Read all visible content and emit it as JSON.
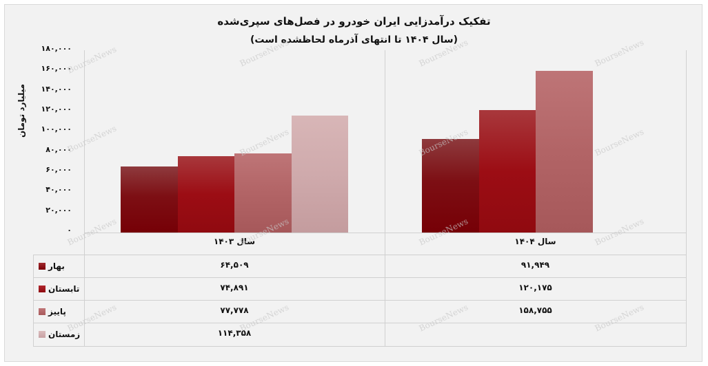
{
  "title": {
    "line1": "تفکیک درآمدزایی ایران خودرو در فصل‌های سپری‌شده",
    "line2": "(سال ۱۴۰۴ تا انتهای آذرماه لحاظشده است)"
  },
  "y_axis": {
    "label": "میلیارد تومان",
    "ticks": [
      "۱۸۰,۰۰۰",
      "۱۶۰,۰۰۰",
      "۱۴۰,۰۰۰",
      "۱۲۰,۰۰۰",
      "۱۰۰,۰۰۰",
      "۸۰,۰۰۰",
      "۶۰,۰۰۰",
      "۴۰,۰۰۰",
      "۲۰,۰۰۰",
      "۰"
    ]
  },
  "groups": [
    "سال ۱۴۰۳",
    "سال ۱۴۰۴"
  ],
  "legend": [
    {
      "label": "بهار",
      "color": "#8b0a10"
    },
    {
      "label": "تابستان",
      "color": "#a0141a"
    },
    {
      "label": "پاییز",
      "color": "#b56a6c"
    },
    {
      "label": "زمستان",
      "color": "#d4aeb0"
    }
  ],
  "table": {
    "rows": [
      {
        "season": "بهار",
        "y1403": "۶۴,۵۰۹",
        "y1404": "۹۱,۹۴۹"
      },
      {
        "season": "تابستان",
        "y1403": "۷۴,۸۹۱",
        "y1404": "۱۲۰,۱۷۵"
      },
      {
        "season": "پاییز",
        "y1403": "۷۷,۷۷۸",
        "y1404": "۱۵۸,۷۵۵"
      },
      {
        "season": "زمستان",
        "y1403": "۱۱۴,۳۵۸",
        "y1404": ""
      }
    ]
  },
  "watermark": "BourseNews",
  "chart_data": {
    "type": "bar",
    "title": "تفکیک درآمدزایی ایران خودرو در فصل‌های سپری‌شده (سال ۱۴۰۴ تا انتهای آذرماه لحاظشده است)",
    "xlabel": "",
    "ylabel": "میلیارد تومان",
    "categories": [
      "سال ۱۴۰۳",
      "سال ۱۴۰۴"
    ],
    "series": [
      {
        "name": "بهار",
        "values": [
          64509,
          91949
        ],
        "color": "#8b0a10"
      },
      {
        "name": "تابستان",
        "values": [
          74891,
          120175
        ],
        "color": "#a0141a"
      },
      {
        "name": "پاییز",
        "values": [
          77778,
          158755
        ],
        "color": "#b56a6c"
      },
      {
        "name": "زمستان",
        "values": [
          114358,
          null
        ],
        "color": "#d4aeb0"
      }
    ],
    "ylim": [
      0,
      180000
    ],
    "yticks": [
      0,
      20000,
      40000,
      60000,
      80000,
      100000,
      120000,
      140000,
      160000,
      180000
    ],
    "grid": false,
    "legend_position": "data-table-left",
    "data_table": true
  }
}
